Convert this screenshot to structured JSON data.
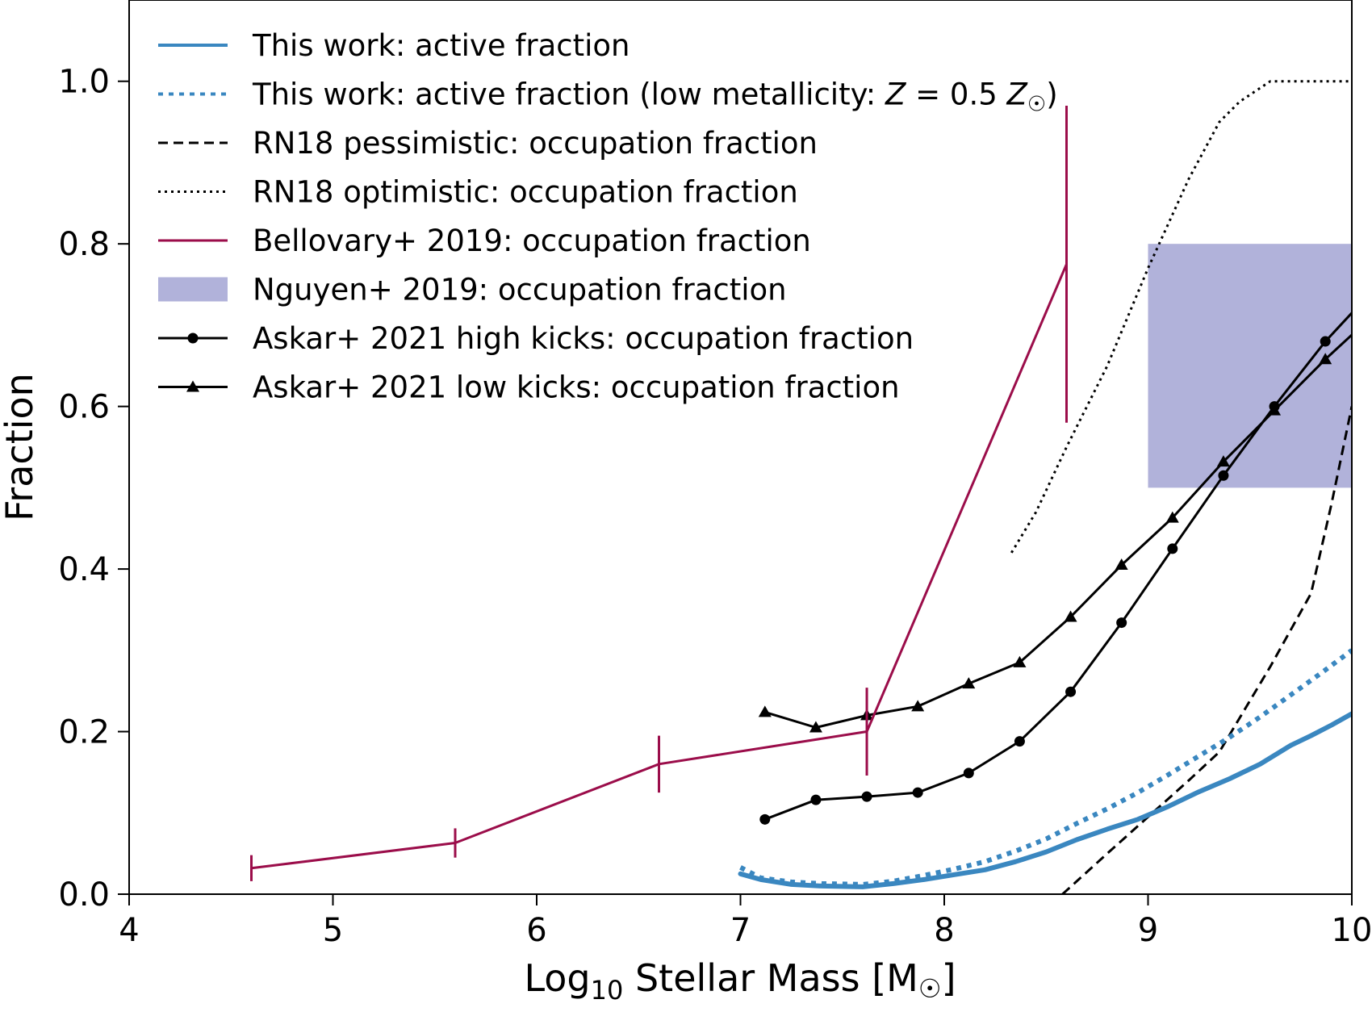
{
  "chart_data": {
    "type": "line",
    "xlabel_main": "Log",
    "xlabel_sub": "10",
    "xlabel_rest": " Stellar Mass [M",
    "xlabel_sun": "☉",
    "xlabel_close": "]",
    "ylabel": "Fraction",
    "xlim": [
      4,
      10
    ],
    "ylim": [
      0,
      1.1
    ],
    "xticks": [
      4,
      5,
      6,
      7,
      8,
      9,
      10
    ],
    "yticks": [
      0.0,
      0.2,
      0.4,
      0.6,
      0.8,
      1.0
    ],
    "ytick_labels": [
      "0.0",
      "0.2",
      "0.4",
      "0.6",
      "0.8",
      "1.0"
    ],
    "grid": false,
    "legend_position": "top-left",
    "series": [
      {
        "name": "This work: active fraction",
        "style": "solid-thick",
        "color": "#3a87c0",
        "x": [
          7.0,
          7.1,
          7.25,
          7.4,
          7.6,
          7.75,
          7.9,
          8.05,
          8.2,
          8.35,
          8.5,
          8.65,
          8.8,
          8.95,
          9.1,
          9.25,
          9.4,
          9.55,
          9.7,
          9.8,
          9.9,
          10.0
        ],
        "y": [
          0.025,
          0.018,
          0.012,
          0.01,
          0.009,
          0.013,
          0.018,
          0.024,
          0.03,
          0.04,
          0.052,
          0.067,
          0.08,
          0.092,
          0.108,
          0.126,
          0.142,
          0.16,
          0.183,
          0.195,
          0.208,
          0.222
        ]
      },
      {
        "name_parts": [
          "This work: active fraction (low metallicity: ",
          "Z",
          " = 0.5 ",
          "Z",
          "☉",
          ")"
        ],
        "style": "dotted-thick",
        "color": "#3a87c0",
        "x": [
          7.0,
          7.1,
          7.25,
          7.4,
          7.6,
          7.75,
          7.9,
          8.05,
          8.2,
          8.35,
          8.5,
          8.65,
          8.8,
          8.95,
          9.1,
          9.25,
          9.4,
          9.55,
          9.7,
          9.85,
          10.0
        ],
        "y": [
          0.033,
          0.02,
          0.015,
          0.013,
          0.012,
          0.016,
          0.023,
          0.031,
          0.04,
          0.053,
          0.068,
          0.087,
          0.105,
          0.125,
          0.147,
          0.17,
          0.193,
          0.218,
          0.245,
          0.272,
          0.3
        ]
      },
      {
        "name": "RN18 pessimistic: occupation fraction",
        "style": "dashed",
        "color": "#000000",
        "x": [
          8.58,
          8.8,
          9.0,
          9.2,
          9.35,
          9.6,
          9.8,
          9.9,
          10.0
        ],
        "y": [
          0.0,
          0.05,
          0.095,
          0.14,
          0.175,
          0.28,
          0.37,
          0.48,
          0.6
        ]
      },
      {
        "name": "RN18 optimistic: occupation fraction",
        "style": "dotted",
        "color": "#000000",
        "x": [
          8.33,
          8.45,
          8.6,
          8.8,
          9.0,
          9.2,
          9.35,
          9.45,
          9.6,
          9.8,
          10.0
        ],
        "y": [
          0.42,
          0.47,
          0.55,
          0.65,
          0.77,
          0.88,
          0.95,
          0.975,
          1.0,
          1.0,
          1.0
        ]
      },
      {
        "name": "Bellovary+ 2019: occupation fraction",
        "style": "solid-errorbar",
        "color": "#9b0d4a",
        "x": [
          4.6,
          5.6,
          6.6,
          7.62,
          8.6
        ],
        "y": [
          0.032,
          0.063,
          0.16,
          0.2,
          0.775
        ],
        "err_low": [
          0.016,
          0.018,
          0.035,
          0.054,
          0.195
        ],
        "err_high": [
          0.016,
          0.018,
          0.035,
          0.054,
          0.195
        ]
      },
      {
        "name": "Nguyen+ 2019: occupation fraction",
        "style": "band",
        "color": "#b1b2da",
        "x_range": [
          9.0,
          10.0
        ],
        "y_range": [
          0.5,
          0.8
        ]
      },
      {
        "name": "Askar+ 2021 high kicks: occupation fraction",
        "style": "solid-circle",
        "color": "#000000",
        "x": [
          7.12,
          7.37,
          7.62,
          7.87,
          8.12,
          8.37,
          8.62,
          8.87,
          9.12,
          9.37,
          9.62,
          9.87,
          10.0
        ],
        "y": [
          0.092,
          0.116,
          0.12,
          0.125,
          0.149,
          0.188,
          0.249,
          0.334,
          0.425,
          0.515,
          0.6,
          0.68,
          0.715
        ]
      },
      {
        "name": "Askar+ 2021 low kicks: occupation fraction",
        "style": "solid-triangle",
        "color": "#000000",
        "x": [
          7.12,
          7.37,
          7.62,
          7.87,
          8.12,
          8.37,
          8.62,
          8.87,
          9.12,
          9.37,
          9.62,
          9.87,
          10.0
        ],
        "y": [
          0.224,
          0.205,
          0.22,
          0.231,
          0.259,
          0.285,
          0.341,
          0.405,
          0.463,
          0.532,
          0.595,
          0.658,
          0.688
        ]
      }
    ]
  }
}
